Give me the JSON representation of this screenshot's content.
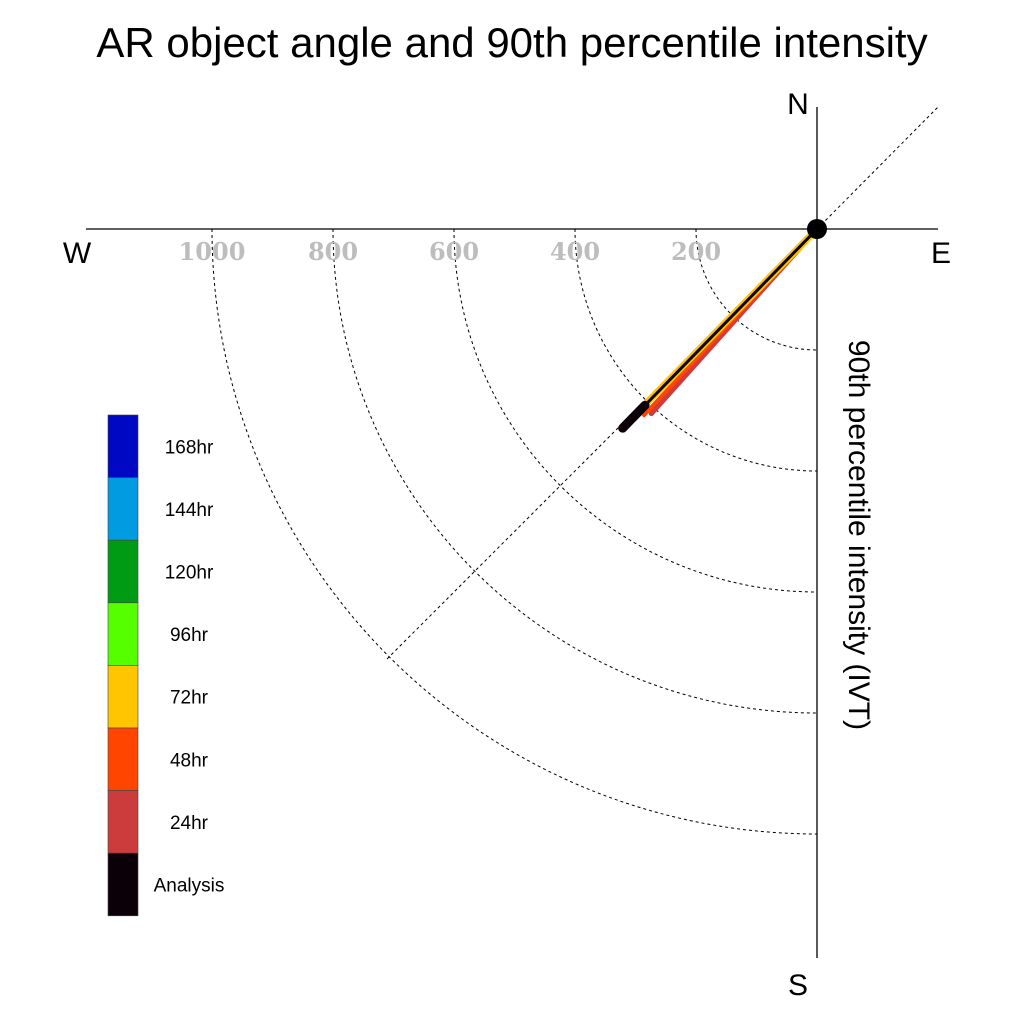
{
  "chart_data": {
    "type": "polar-trajectory",
    "title": "AR object angle and 90th percentile intensity",
    "ylabel": "90th percentile intensity (IVT)",
    "compass": {
      "north": "N",
      "south": "S",
      "east": "E",
      "west": "W"
    },
    "radial_ticks": [
      200,
      400,
      600,
      800,
      1000
    ],
    "radial_tick_labels": [
      "200",
      "400",
      "600",
      "800",
      "1000"
    ],
    "grid": true,
    "diagonal_guides": true,
    "legend_position": "left",
    "legend": [
      {
        "label": "168hr",
        "color": "#0008c4"
      },
      {
        "label": "144hr",
        "color": "#009be0"
      },
      {
        "label": "120hr",
        "color": "#009b14"
      },
      {
        "label": "96hr",
        "color": "#55ff00"
      },
      {
        "label": "72hr",
        "color": "#ffc500"
      },
      {
        "label": "48hr",
        "color": "#ff4500"
      },
      {
        "label": "24hr",
        "color": "#cc3c3c"
      },
      {
        "label": "Analysis",
        "color": "#0c0008"
      }
    ],
    "series": [
      {
        "name": "24hr",
        "color": "#cc3c3c",
        "angle_deg": 221.9,
        "intensity": 410,
        "width": 5
      },
      {
        "name": "48hr",
        "color": "#ff4500",
        "angle_deg": 222.9,
        "intensity": 420,
        "width": 4
      },
      {
        "name": "72hr",
        "color": "#ffc500",
        "angle_deg": 224.4,
        "intensity": 425,
        "width": 7
      },
      {
        "name": "Analysis",
        "color": "#0c0008",
        "angle_deg": 224.3,
        "intensity": 440,
        "width": 3,
        "point_from": 407,
        "point_to": 460
      }
    ]
  }
}
